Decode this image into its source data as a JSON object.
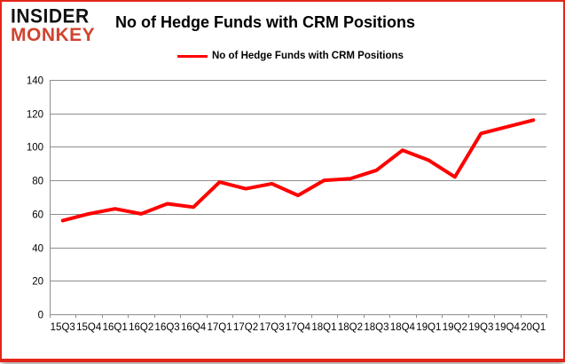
{
  "header": {
    "logo_line1": "INSIDER",
    "logo_line2": "MONKEY",
    "title": "No of Hedge Funds with CRM Positions"
  },
  "legend": {
    "label": "No of Hedge Funds with CRM Positions"
  },
  "colors": {
    "series_line": "#ff0000",
    "legend_swatch": "#ff0000",
    "logo_red": "#d2432f",
    "frame_border": "#e3261a",
    "grid": "#8e8e8e",
    "axis_text": "#000000"
  },
  "chart_data": {
    "type": "line",
    "title": "No of Hedge Funds with CRM Positions",
    "categories": [
      "15Q3",
      "15Q4",
      "16Q1",
      "16Q2",
      "16Q3",
      "16Q4",
      "17Q1",
      "17Q2",
      "17Q3",
      "17Q4",
      "18Q1",
      "18Q2",
      "18Q3",
      "18Q4",
      "19Q1",
      "19Q2",
      "19Q3",
      "19Q4",
      "20Q1"
    ],
    "series": [
      {
        "name": "No of Hedge Funds with CRM Positions",
        "values": [
          56,
          60,
          63,
          60,
          66,
          64,
          79,
          75,
          78,
          71,
          80,
          81,
          86,
          98,
          92,
          82,
          108,
          112,
          116
        ]
      }
    ],
    "ylim": [
      0,
      140
    ],
    "yticks": [
      0,
      20,
      40,
      60,
      80,
      100,
      120,
      140
    ],
    "xlabel": "",
    "ylabel": "",
    "grid": true,
    "legend_position": "top"
  }
}
